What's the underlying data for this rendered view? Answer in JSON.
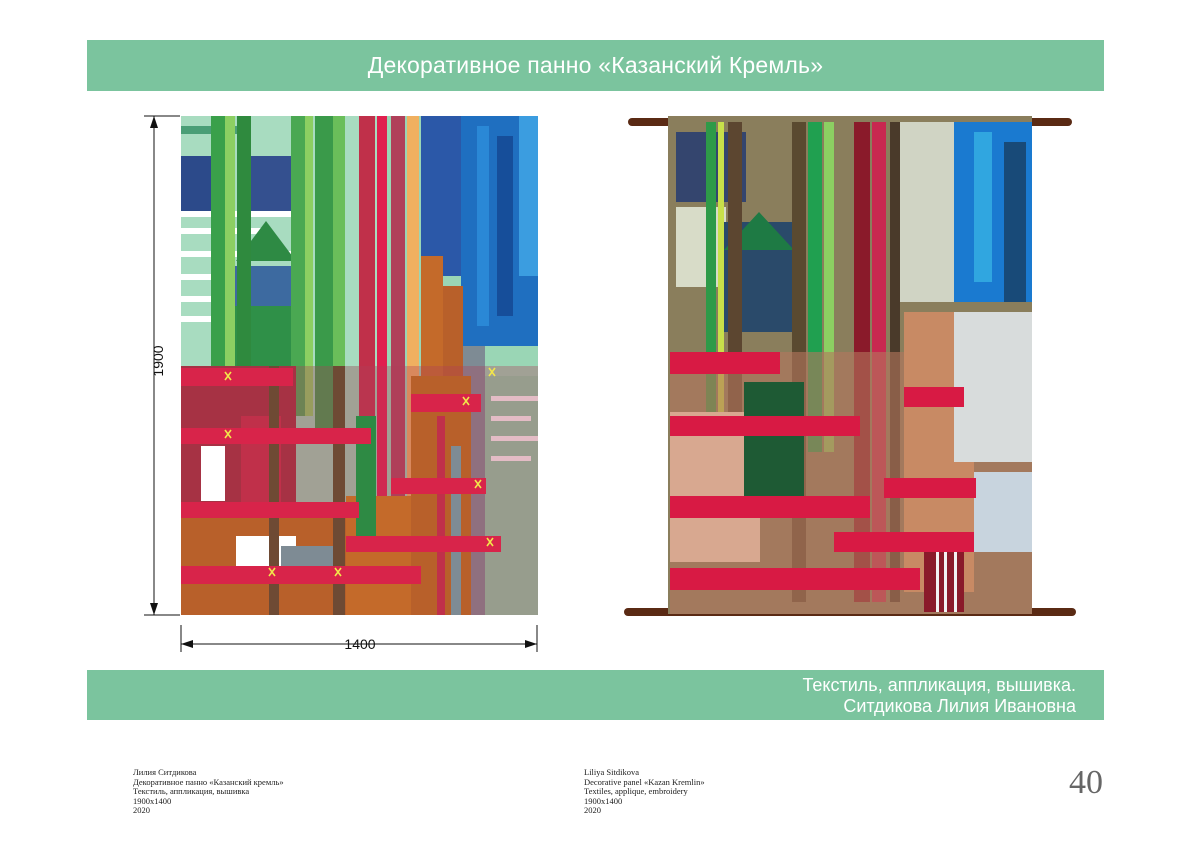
{
  "header": {
    "title": "Декоративное панно «Казанский Кремль»"
  },
  "footer_band": {
    "line1": "Текстиль, аппликация, вышивка.",
    "line2": "Ситдикова Лилия Ивановна"
  },
  "dimensions": {
    "height": "1900",
    "width": "1400"
  },
  "caption_ru": {
    "author": "Лилия Ситдикова",
    "work": "Декоративное панно  «Казанский кремль»",
    "technique": "Текстиль, аппликация, вышивка",
    "size": "1900х1400",
    "year": "2020"
  },
  "caption_en": {
    "author": "Liliya Sitdikova",
    "work": "Decorative panel «Kazan Kremlin»",
    "technique": "Textiles, applique, embroidery",
    "size": "1900х1400",
    "year": "2020"
  },
  "page_number": "40",
  "colors": {
    "band": "#7bc49e",
    "crimson": "#c0304a",
    "pink": "#e0204e",
    "green": "#3a9a4a",
    "light_green": "#8ccf62",
    "blue": "#1f6fc0",
    "navy": "#2c4a8a",
    "rust": "#b8602a",
    "grey": "#7e8b94"
  }
}
